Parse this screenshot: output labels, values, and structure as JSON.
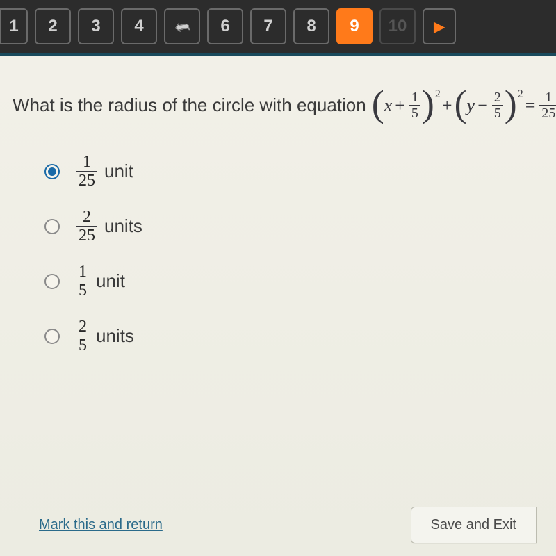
{
  "nav": {
    "buttons": [
      {
        "label": "1",
        "state": "edge"
      },
      {
        "label": "2",
        "state": "normal"
      },
      {
        "label": "3",
        "state": "normal"
      },
      {
        "label": "4",
        "state": "normal"
      },
      {
        "label": "↶",
        "state": "icon-undo"
      },
      {
        "label": "6",
        "state": "normal"
      },
      {
        "label": "7",
        "state": "normal"
      },
      {
        "label": "8",
        "state": "normal"
      },
      {
        "label": "9",
        "state": "active"
      },
      {
        "label": "10",
        "state": "disabled"
      },
      {
        "label": "▶",
        "state": "icon-play"
      }
    ]
  },
  "question": {
    "stem": "What is the radius of the circle with equation",
    "eq": {
      "term1": {
        "var": "x",
        "op": "+",
        "num": "1",
        "den": "5"
      },
      "term2": {
        "var": "y",
        "op": "−",
        "num": "2",
        "den": "5"
      },
      "rhs": {
        "num": "1",
        "den": "25"
      },
      "exp": "2",
      "tail": "?"
    }
  },
  "options": [
    {
      "num": "1",
      "den": "25",
      "unit": "unit",
      "selected": true
    },
    {
      "num": "2",
      "den": "25",
      "unit": "units",
      "selected": false
    },
    {
      "num": "1",
      "den": "5",
      "unit": "unit",
      "selected": false
    },
    {
      "num": "2",
      "den": "5",
      "unit": "units",
      "selected": false
    }
  ],
  "footer": {
    "mark": "Mark this and return",
    "save": "Save and Exit"
  },
  "colors": {
    "accent": "#ff7a1a",
    "radio_selected": "#1a6aa8",
    "nav_bg": "#2c2c2c",
    "page_bg": "#ecece2",
    "link": "#2a6a8a"
  }
}
